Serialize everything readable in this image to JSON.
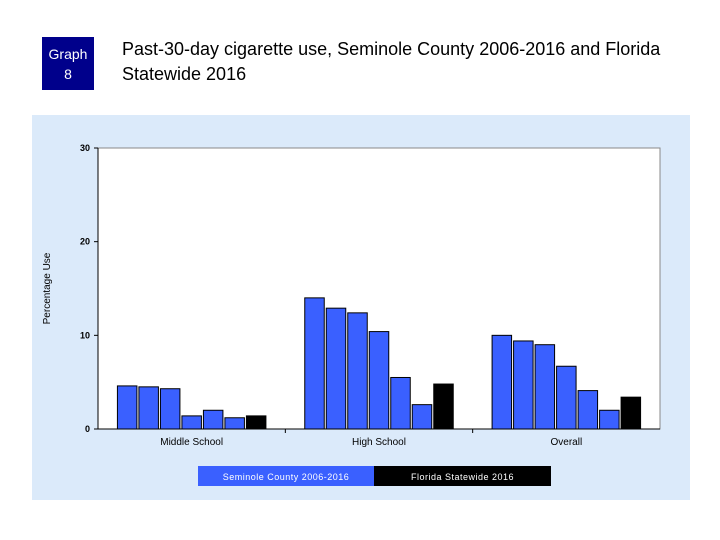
{
  "badge": {
    "line1": "Graph",
    "line2": "8"
  },
  "title": "Past-30-day cigarette use, Seminole County 2006-2016 and Florida Statewide 2016",
  "chart_data": {
    "type": "bar",
    "categories": [
      "Middle School",
      "High School",
      "Overall"
    ],
    "ylabel": "Percentage Use",
    "ylim": [
      0,
      30
    ],
    "yticks": [
      0,
      10,
      20,
      30
    ],
    "grid": false,
    "series": [
      {
        "values": [
          4.6,
          14.0,
          10.0
        ]
      },
      {
        "values": [
          4.5,
          12.9,
          9.4
        ]
      },
      {
        "values": [
          4.3,
          12.4,
          9.0
        ]
      },
      {
        "values": [
          1.4,
          10.4,
          6.7
        ]
      },
      {
        "values": [
          2.0,
          5.5,
          4.1
        ]
      },
      {
        "values": [
          1.2,
          2.6,
          2.0
        ]
      },
      {
        "values": [
          1.4,
          4.8,
          3.4
        ]
      }
    ],
    "legend": [
      {
        "label": "Seminole County 2006-2016",
        "color": "#3a60ff"
      },
      {
        "label": "Florida Statewide 2016",
        "color": "#000000"
      }
    ],
    "legend_position": "bottom"
  }
}
